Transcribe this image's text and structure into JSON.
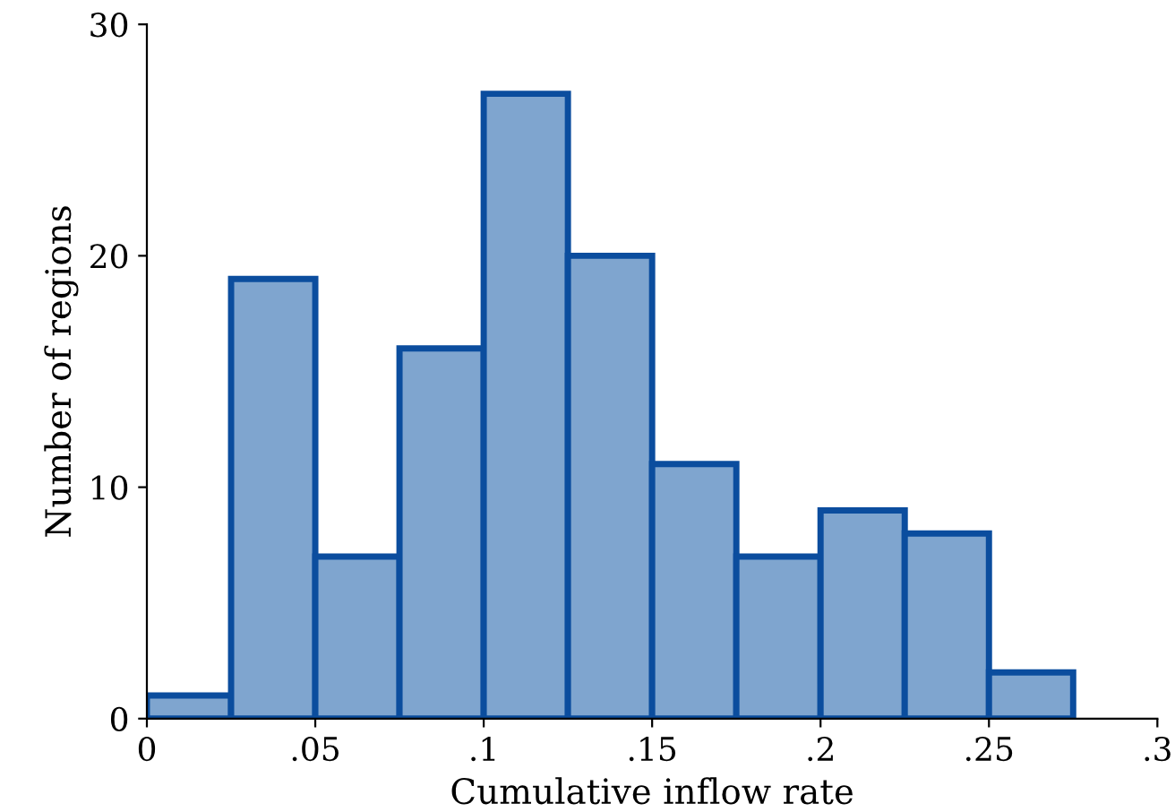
{
  "chart_data": {
    "type": "histogram",
    "xlabel": "Cumulative inflow rate",
    "ylabel": "Number of regions",
    "bins": [
      0,
      0.025,
      0.05,
      0.075,
      0.1,
      0.125,
      0.15,
      0.175,
      0.2,
      0.225,
      0.25,
      0.275
    ],
    "values": [
      1,
      19,
      7,
      16,
      27,
      20,
      11,
      7,
      9,
      8,
      2
    ],
    "color": "#7fa5cf",
    "xlim": [
      0,
      0.3
    ],
    "ylim": [
      0,
      30
    ],
    "xticks": [
      0,
      {
        "value": 0.05,
        "label": ".05"
      },
      {
        "value": 0.1,
        "label": ".1"
      },
      {
        "value": 0.15,
        "label": ".15"
      },
      {
        "value": 0.2,
        "label": ".2"
      },
      {
        "value": 0.25,
        "label": ".25"
      },
      {
        "value": 0.3,
        "label": ".3"
      }
    ],
    "yticks": [
      0,
      10,
      20,
      30
    ],
    "grid": false,
    "legend": false
  }
}
